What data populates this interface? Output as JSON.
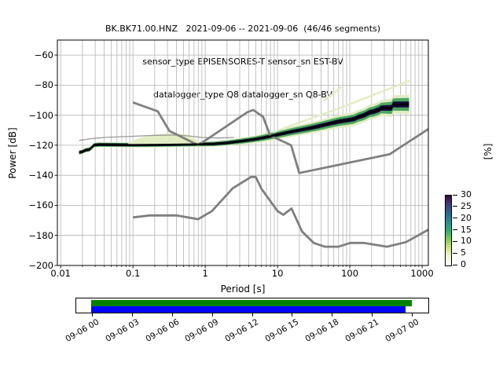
{
  "title": {
    "line1": "BK.BK71.00.HNZ   2021-09-06 -- 2021-09-06  (46/46 segments)",
    "line2": "sensor_type EPISENSORES-T sensor_sn EST-BV",
    "line3": "datalogger_type Q8 datalogger_sn Q8-BV"
  },
  "chart_data": {
    "type": "heatmap",
    "description": "Probabilistic power spectral density (PPSD) of station BK.BK71.00.HNZ with Peterson NLNM/NHNM noise model curves and mode line",
    "xlabel": "Period [s]",
    "ylabel": "Power [dB]",
    "right_label": "[%]",
    "x_scale": "log",
    "xlim": [
      0.009,
      1220
    ],
    "ylim": [
      -200,
      -50
    ],
    "x_ticks": [
      0.01,
      0.1,
      1,
      10,
      100,
      1000
    ],
    "x_tick_labels": [
      "0.01",
      "0.1",
      "1",
      "10",
      "100",
      "1000"
    ],
    "y_ticks": [
      -60,
      -80,
      -100,
      -120,
      -140,
      -160,
      -180,
      -200
    ],
    "y_tick_labels": [
      "−60",
      "−80",
      "−100",
      "−120",
      "−140",
      "−160",
      "−180",
      "−200"
    ],
    "grid": true,
    "legend_position": "none",
    "colors": {
      "grid": "#b3b3b3",
      "noise_model": "#7f7f7f",
      "mode": "#000000",
      "mean": "#9a9a9a",
      "band_dark": "#17093a",
      "band_green": "#4aa85e",
      "band_pale": "#e2ecc2",
      "axis": "#000000"
    },
    "colorbar": {
      "label": "[%]",
      "ticks": [
        30,
        25,
        20,
        15,
        10,
        5,
        0
      ],
      "gradient": [
        [
          "0%",
          "#ffffff"
        ],
        [
          "8%",
          "#f7f7e6"
        ],
        [
          "17%",
          "#e8efbc"
        ],
        [
          "27%",
          "#c3e084"
        ],
        [
          "34%",
          "#97d064"
        ],
        [
          "41%",
          "#6abf66"
        ],
        [
          "50%",
          "#38a877"
        ],
        [
          "58%",
          "#2d9a85"
        ],
        [
          "67%",
          "#2f7e8e"
        ],
        [
          "75%",
          "#32648b"
        ],
        [
          "83%",
          "#3d4a85"
        ],
        [
          "91%",
          "#433066"
        ],
        [
          "100%",
          "#2c0b3f"
        ]
      ]
    },
    "noise_models": {
      "nhnm": [
        [
          0.1,
          -91.5
        ],
        [
          0.22,
          -97.4
        ],
        [
          0.32,
          -110.5
        ],
        [
          0.8,
          -120.0
        ],
        [
          3.8,
          -98.1
        ],
        [
          4.6,
          -96.5
        ],
        [
          6.3,
          -101.0
        ],
        [
          7.9,
          -113.5
        ],
        [
          15.4,
          -120.0
        ],
        [
          20.0,
          -138.5
        ],
        [
          354.8,
          -126.0
        ],
        [
          1220,
          -109.2
        ]
      ],
      "nlnm": [
        [
          0.1,
          -168.0
        ],
        [
          0.17,
          -166.7
        ],
        [
          0.4,
          -166.7
        ],
        [
          0.8,
          -169.2
        ],
        [
          1.24,
          -163.8
        ],
        [
          2.4,
          -148.6
        ],
        [
          4.3,
          -141.1
        ],
        [
          5.0,
          -141.1
        ],
        [
          6.0,
          -149.0
        ],
        [
          10.0,
          -163.8
        ],
        [
          12.0,
          -166.3
        ],
        [
          15.6,
          -162.1
        ],
        [
          21.9,
          -177.5
        ],
        [
          31.6,
          -185.0
        ],
        [
          45.0,
          -187.5
        ],
        [
          70.0,
          -187.5
        ],
        [
          101.0,
          -185.0
        ],
        [
          154.0,
          -185.0
        ],
        [
          328.0,
          -187.5
        ],
        [
          600.0,
          -184.4
        ],
        [
          1220,
          -176.2
        ]
      ]
    },
    "mode_line": [
      [
        0.018,
        -124.8
      ],
      [
        0.02,
        -124.3
      ],
      [
        0.022,
        -123.3
      ],
      [
        0.025,
        -122.8
      ],
      [
        0.027,
        -121.4
      ],
      [
        0.029,
        -119.9
      ],
      [
        0.034,
        -119.6
      ],
      [
        0.06,
        -119.7
      ],
      [
        0.1,
        -119.8
      ],
      [
        0.2,
        -119.7
      ],
      [
        0.4,
        -119.5
      ],
      [
        0.8,
        -119.3
      ],
      [
        1.3,
        -119.1
      ],
      [
        2,
        -118.4
      ],
      [
        3,
        -117.4
      ],
      [
        4,
        -116.6
      ],
      [
        5,
        -115.9
      ],
      [
        6.5,
        -114.9
      ],
      [
        8,
        -114.0
      ],
      [
        10,
        -113.0
      ],
      [
        13,
        -111.8
      ],
      [
        17,
        -110.6
      ],
      [
        22,
        -109.6
      ],
      [
        28,
        -108.6
      ],
      [
        36,
        -107.5
      ],
      [
        46,
        -106.3
      ],
      [
        60,
        -105.0
      ],
      [
        75,
        -104.0
      ],
      [
        95,
        -103.3
      ],
      [
        115,
        -102.5
      ],
      [
        130,
        -101.3
      ],
      [
        150,
        -100.4
      ],
      [
        165,
        -99.6
      ],
      [
        190,
        -98.0
      ],
      [
        210,
        -97.7
      ],
      [
        255,
        -96.2
      ],
      [
        270,
        -95.3
      ],
      [
        380,
        -95.1
      ],
      [
        395,
        -92.9
      ],
      [
        660,
        -92.8
      ]
    ],
    "mean_line": [
      [
        0.018,
        -116.8
      ],
      [
        0.025,
        -115.8
      ],
      [
        0.04,
        -114.8
      ],
      [
        0.1,
        -114.0
      ],
      [
        0.2,
        -113.4
      ],
      [
        0.4,
        -113.2
      ],
      [
        0.6,
        -113.8
      ],
      [
        0.9,
        -114.8
      ],
      [
        1.5,
        -115.2
      ],
      [
        2.5,
        -114.8
      ]
    ],
    "low_probability_tails": [
      [
        [
          8.8,
          -111.2
        ],
        [
          80,
          -94.5
        ],
        [
          704,
          -76.7
        ]
      ],
      [
        [
          45,
          -90.0
        ],
        [
          75,
          -81.5
        ]
      ]
    ],
    "bump_upper": [
      [
        0.085,
        -118.8
      ],
      [
        0.12,
        -115.2
      ],
      [
        0.2,
        -112.8
      ],
      [
        0.35,
        -111.8
      ],
      [
        0.55,
        -112.8
      ],
      [
        0.75,
        -116.2
      ],
      [
        0.85,
        -118.8
      ]
    ],
    "band": {
      "half_width_profile": {
        "periods": [
          0.018,
          1,
          5,
          10,
          30,
          100,
          250,
          450,
          700
        ],
        "dark": [
          0.9,
          0.9,
          1.0,
          1.1,
          1.3,
          1.5,
          1.7,
          2.0,
          2.0
        ],
        "green": [
          1.3,
          1.3,
          1.8,
          2.2,
          2.6,
          3.0,
          3.4,
          4.3,
          4.3
        ],
        "pale": [
          1.6,
          1.8,
          2.6,
          3.2,
          3.8,
          4.6,
          5.2,
          6.4,
          6.4
        ]
      }
    }
  },
  "timeline": {
    "tick_labels": [
      "09-06 00",
      "09-06 03",
      "09-06 06",
      "09-06 09",
      "09-06 12",
      "09-06 15",
      "09-06 18",
      "09-06 21",
      "09-07 00"
    ],
    "coverage_color": "#008000",
    "used_color": "#0000ff"
  }
}
